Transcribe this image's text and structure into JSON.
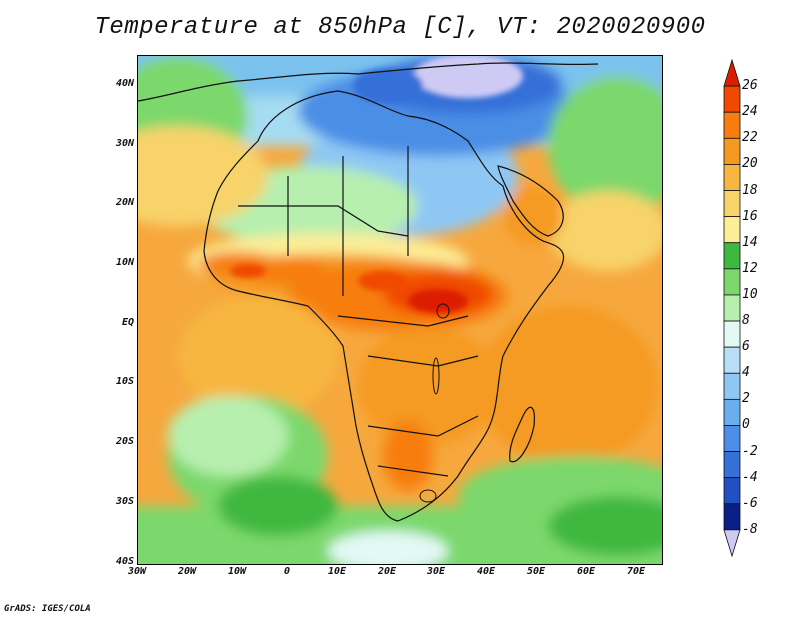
{
  "title": "Temperature at 850hPa [C], VT: 2020020900",
  "footer": "GrADS: IGES/COLA",
  "axes": {
    "y_ticks": [
      "40N",
      "30N",
      "20N",
      "10N",
      "EQ",
      "10S",
      "20S",
      "30S",
      "40S"
    ],
    "x_ticks": [
      "30W",
      "20W",
      "10W",
      "0",
      "10E",
      "20E",
      "30E",
      "40E",
      "50E",
      "60E",
      "70E"
    ]
  },
  "colorbar": {
    "levels": [
      "26",
      "24",
      "22",
      "20",
      "18",
      "16",
      "14",
      "12",
      "10",
      "8",
      "6",
      "4",
      "2",
      "0",
      "-2",
      "-4",
      "-6",
      "-8"
    ],
    "colors": [
      "#dd1d00",
      "#f04a00",
      "#f77e0e",
      "#f59a20",
      "#f7b640",
      "#f7d36a",
      "#fbee96",
      "#3fb840",
      "#7cd86c",
      "#b7efaf",
      "#e2f9f5",
      "#b8dff7",
      "#8ec7f4",
      "#6aaeee",
      "#4c8ee6",
      "#356fd8",
      "#2050c2",
      "#0b1f88",
      "#cfcaf4"
    ],
    "over_color": "#dd1d00",
    "under_color": "#cfcaf4"
  }
}
